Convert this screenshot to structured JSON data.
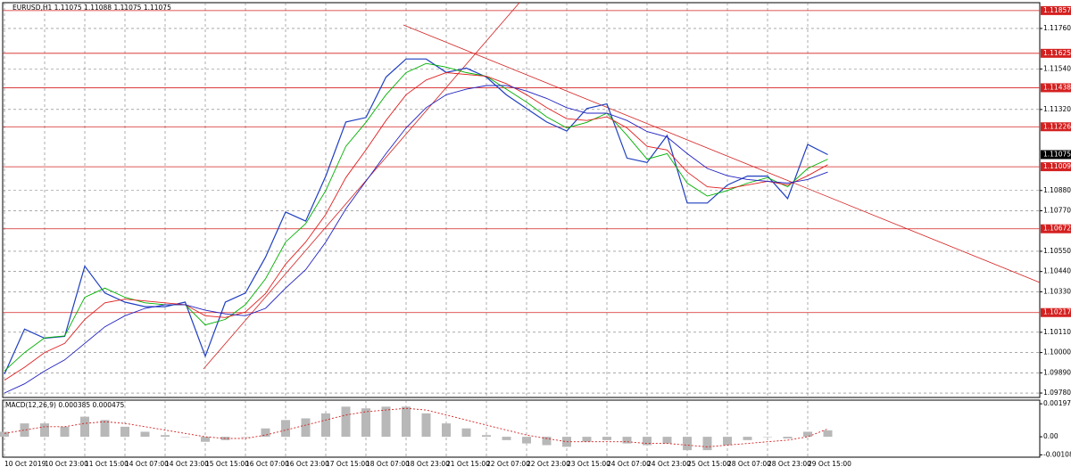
{
  "chart_data": [
    {
      "type": "line",
      "title": "EURUSD,H1  1.11075 1.11088 1.11075 1.11075",
      "categories": [
        "10 Oct 2019",
        null,
        "10 Oct 23:00",
        null,
        "11 Oct 15:00",
        null,
        "14 Oct 07:00",
        null,
        "14 Oct 23:00",
        null,
        "15 Oct 15:00",
        null,
        "16 Oct 07:00",
        null,
        "16 Oct 23:00",
        null,
        "17 Oct 15:00",
        null,
        "18 Oct 07:00",
        null,
        "18 Oct 23:00",
        null,
        "21 Oct 15:00",
        null,
        "22 Oct 07:00",
        null,
        "22 Oct 23:00",
        null,
        "23 Oct 15:00",
        null,
        "24 Oct 07:00",
        null,
        "24 Oct 23:00",
        null,
        "25 Oct 15:00",
        null,
        "28 Oct 07:00",
        null,
        "28 Oct 23:00",
        null,
        "29 Oct 15:00",
        null
      ],
      "series": [
        {
          "color": "#1f3fbf",
          "values": [
            1.09883,
            1.10127,
            1.10078,
            1.10088,
            1.10469,
            1.10323,
            1.10274,
            1.10249,
            1.10249,
            1.10274,
            1.0998,
            1.10274,
            1.10323,
            1.10518,
            1.10763,
            1.10714,
            1.10958,
            1.11252,
            1.11276,
            1.11496,
            1.11594,
            1.11594,
            1.11521,
            1.11545,
            1.11496,
            1.11399,
            1.11325,
            1.11252,
            1.11203,
            1.11325,
            1.1135,
            1.11056,
            1.11032,
            1.11179,
            1.10812,
            1.10812,
            1.1091,
            1.10958,
            1.10958,
            1.10836,
            1.1113,
            1.11075
          ]
        },
        {
          "color": "#00b000",
          "values": [
            1.099,
            1.1,
            1.1008,
            1.1009,
            1.103,
            1.1035,
            1.103,
            1.1027,
            1.1026,
            1.1026,
            1.1015,
            1.1018,
            1.1026,
            1.104,
            1.106,
            1.107,
            1.1088,
            1.1112,
            1.1125,
            1.114,
            1.1152,
            1.1157,
            1.1155,
            1.1152,
            1.115,
            1.1143,
            1.1136,
            1.1128,
            1.1122,
            1.1125,
            1.113,
            1.1118,
            1.1105,
            1.1108,
            1.1092,
            1.1085,
            1.1088,
            1.1092,
            1.1095,
            1.109,
            1.11,
            1.1105
          ]
        },
        {
          "color": "#e02020",
          "values": [
            1.0985,
            1.0992,
            1.1,
            1.1005,
            1.1018,
            1.1027,
            1.1029,
            1.1028,
            1.1027,
            1.1026,
            1.102,
            1.1019,
            1.1022,
            1.1032,
            1.1048,
            1.106,
            1.1075,
            1.1095,
            1.111,
            1.1126,
            1.114,
            1.1148,
            1.1152,
            1.1151,
            1.115,
            1.1146,
            1.114,
            1.1133,
            1.1127,
            1.1126,
            1.1128,
            1.1122,
            1.1112,
            1.111,
            1.1098,
            1.109,
            1.1089,
            1.1091,
            1.1093,
            1.1091,
            1.1096,
            1.1102
          ]
        },
        {
          "color": "#2020c0",
          "values": [
            1.0978,
            1.0983,
            1.099,
            1.0996,
            1.1005,
            1.1014,
            1.102,
            1.1024,
            1.1026,
            1.1026,
            1.1023,
            1.1021,
            1.102,
            1.1024,
            1.1035,
            1.1045,
            1.106,
            1.1078,
            1.1093,
            1.1108,
            1.1122,
            1.1133,
            1.114,
            1.1143,
            1.1145,
            1.1145,
            1.1142,
            1.1138,
            1.1133,
            1.113,
            1.113,
            1.1126,
            1.112,
            1.1117,
            1.1108,
            1.11,
            1.1096,
            1.1094,
            1.1093,
            1.1092,
            1.1094,
            1.1098
          ]
        }
      ],
      "ylim": [
        1.09756,
        1.119
      ],
      "yticks": [
        {
          "value": 1.0978,
          "label": "1.09780"
        },
        {
          "value": 1.0989,
          "label": "1.09890"
        },
        {
          "value": 1.1,
          "label": "1.10000"
        },
        {
          "value": 1.1011,
          "label": "1.10110"
        },
        {
          "value": 1.1033,
          "label": "1.10330"
        },
        {
          "value": 1.1044,
          "label": "1.10440"
        },
        {
          "value": 1.1055,
          "label": "1.10550"
        },
        {
          "value": 1.1077,
          "label": "1.10770"
        },
        {
          "value": 1.1088,
          "label": "1.10880"
        },
        {
          "value": 1.1132,
          "label": "1.11320"
        },
        {
          "value": 1.1154,
          "label": "1.11540"
        },
        {
          "value": 1.1176,
          "label": "1.11760"
        }
      ],
      "levels": [
        1.11857,
        1.11625,
        1.11438,
        1.11226,
        1.11009,
        1.10672,
        1.10217
      ],
      "level_color": "#d42020",
      "last_price": 1.11075,
      "grid": true
    },
    {
      "type": "bar",
      "title": "MACD(12,26,9) 0.000385 0.000475",
      "series": [
        {
          "color": "#b8b8b8",
          "values": [
            0.0003,
            0.0008,
            0.0008,
            0.0006,
            0.0012,
            0.001,
            0.0006,
            0.0003,
            0.0001,
            0.0,
            -0.0003,
            -0.0002,
            0.0,
            0.0005,
            0.001,
            0.0011,
            0.0014,
            0.0018,
            0.0017,
            0.0018,
            0.0018,
            0.0014,
            0.0008,
            0.0005,
            0.0001,
            -0.0002,
            -0.0004,
            -0.0005,
            -0.0006,
            -0.0003,
            -0.0002,
            -0.0004,
            -0.0005,
            -0.0004,
            -0.0008,
            -0.0008,
            -0.0005,
            -0.0002,
            0.0,
            -0.0001,
            0.0003,
            0.000385
          ]
        },
        {
          "color": "#d42020",
          "values": [
            0.0002,
            0.0004,
            0.0006,
            0.0006,
            0.0008,
            0.0009,
            0.0008,
            0.0006,
            0.0004,
            0.0002,
            0.0,
            -0.0001,
            -0.0001,
            0.0001,
            0.0004,
            0.0007,
            0.001,
            0.0013,
            0.0015,
            0.0016,
            0.0017,
            0.0016,
            0.0013,
            0.001,
            0.0007,
            0.0004,
            0.0001,
            -0.0001,
            -0.0003,
            -0.0003,
            -0.0003,
            -0.0003,
            -0.0004,
            -0.0004,
            -0.0005,
            -0.0006,
            -0.0005,
            -0.0004,
            -0.0003,
            -0.0002,
            0.0,
            0.000475
          ]
        }
      ],
      "ylim": [
        -0.00122,
        0.00219
      ],
      "yticks": [
        0.001972,
        {
          "value": 0,
          "label": "0.00"
        },
        -0.00108
      ]
    }
  ]
}
